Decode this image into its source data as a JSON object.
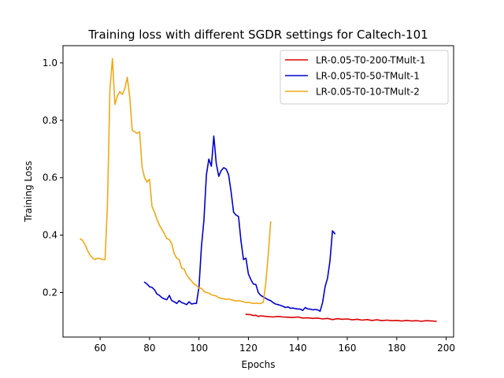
{
  "chart_data": {
    "type": "line",
    "title": "Training loss with different SGDR settings for Caltech-101",
    "xlabel": "Epochs",
    "ylabel": "Training Loss",
    "xlim": [
      45,
      203
    ],
    "ylim": [
      0.045,
      1.06
    ],
    "xticks": [
      60,
      80,
      100,
      120,
      140,
      160,
      180,
      200
    ],
    "yticks": [
      0.2,
      0.4,
      0.6,
      0.8,
      1.0
    ],
    "xtick_labels": [
      "60",
      "80",
      "100",
      "120",
      "140",
      "160",
      "180",
      "200"
    ],
    "ytick_labels": [
      "0.2",
      "0.4",
      "0.6",
      "0.8",
      "1.0"
    ],
    "grid": false,
    "legend_position": "upper right",
    "series": [
      {
        "name": "LR-0.05-T0-200-TMult-1",
        "color": "#dd0000",
        "x": [
          119,
          121,
          122,
          123,
          124,
          125,
          126,
          128,
          130,
          132,
          134,
          136,
          138,
          140,
          142,
          144,
          146,
          148,
          150,
          152,
          154,
          156,
          158,
          160,
          162,
          164,
          166,
          168,
          170,
          172,
          174,
          176,
          178,
          180,
          182,
          184,
          186,
          188,
          190,
          192,
          194,
          196
        ],
        "y": [
          0.124,
          0.123,
          0.12,
          0.121,
          0.117,
          0.119,
          0.118,
          0.116,
          0.115,
          0.117,
          0.115,
          0.114,
          0.113,
          0.115,
          0.111,
          0.112,
          0.11,
          0.111,
          0.108,
          0.11,
          0.106,
          0.109,
          0.107,
          0.108,
          0.105,
          0.107,
          0.104,
          0.106,
          0.103,
          0.105,
          0.102,
          0.104,
          0.102,
          0.103,
          0.101,
          0.103,
          0.101,
          0.102,
          0.1,
          0.102,
          0.101,
          0.1
        ]
      },
      {
        "name": "LR-0.05-T0-50-TMult-1",
        "color": "#0000cc",
        "x": [
          78,
          79,
          80,
          81,
          82,
          83,
          84,
          85,
          86,
          87,
          88,
          89,
          90,
          91,
          92,
          93,
          94,
          95,
          96,
          97,
          98,
          99,
          100,
          101,
          102,
          103,
          104,
          105,
          106,
          107,
          108,
          109,
          110,
          111,
          112,
          113,
          114,
          115,
          116,
          117,
          118,
          119,
          120,
          121,
          122,
          123,
          124,
          125,
          126,
          127,
          128,
          129,
          130,
          131,
          132,
          133,
          134,
          135,
          136,
          137,
          138,
          139,
          140,
          141,
          142,
          143,
          144,
          145,
          146,
          147,
          148,
          149,
          150,
          151,
          152,
          153,
          154,
          155
        ],
        "y": [
          0.236,
          0.23,
          0.22,
          0.218,
          0.21,
          0.195,
          0.19,
          0.182,
          0.178,
          0.175,
          0.19,
          0.172,
          0.168,
          0.162,
          0.172,
          0.165,
          0.162,
          0.158,
          0.168,
          0.16,
          0.162,
          0.162,
          0.22,
          0.36,
          0.45,
          0.61,
          0.665,
          0.64,
          0.745,
          0.65,
          0.605,
          0.625,
          0.635,
          0.63,
          0.61,
          0.55,
          0.48,
          0.47,
          0.465,
          0.38,
          0.315,
          0.32,
          0.265,
          0.245,
          0.23,
          0.228,
          0.2,
          0.19,
          0.185,
          0.18,
          0.175,
          0.172,
          0.165,
          0.16,
          0.158,
          0.155,
          0.152,
          0.148,
          0.15,
          0.145,
          0.146,
          0.144,
          0.143,
          0.142,
          0.138,
          0.148,
          0.143,
          0.142,
          0.14,
          0.141,
          0.14,
          0.135,
          0.165,
          0.22,
          0.25,
          0.31,
          0.415,
          0.405
        ]
      },
      {
        "name": "LR-0.05-T0-10-TMult-2",
        "color": "#f0a818",
        "x": [
          52,
          53,
          54,
          55,
          56,
          57,
          58,
          59,
          60,
          61,
          62,
          63,
          64,
          65,
          66,
          67,
          68,
          69,
          70,
          71,
          72,
          73,
          74,
          75,
          76,
          77,
          78,
          79,
          80,
          81,
          82,
          83,
          84,
          85,
          86,
          87,
          88,
          89,
          90,
          91,
          92,
          93,
          94,
          95,
          96,
          97,
          98,
          99,
          100,
          101,
          102,
          103,
          104,
          105,
          106,
          107,
          108,
          109,
          110,
          111,
          112,
          113,
          114,
          115,
          116,
          117,
          118,
          119,
          120,
          121,
          122,
          123,
          124,
          125,
          126,
          127,
          128,
          129
        ],
        "y": [
          0.387,
          0.381,
          0.365,
          0.345,
          0.33,
          0.32,
          0.315,
          0.32,
          0.318,
          0.315,
          0.315,
          0.51,
          0.91,
          1.015,
          0.855,
          0.885,
          0.9,
          0.89,
          0.91,
          0.95,
          0.88,
          0.765,
          0.76,
          0.755,
          0.76,
          0.635,
          0.6,
          0.585,
          0.595,
          0.5,
          0.48,
          0.455,
          0.435,
          0.42,
          0.405,
          0.388,
          0.385,
          0.37,
          0.335,
          0.32,
          0.315,
          0.285,
          0.282,
          0.262,
          0.25,
          0.24,
          0.23,
          0.225,
          0.215,
          0.215,
          0.205,
          0.2,
          0.198,
          0.192,
          0.19,
          0.188,
          0.182,
          0.18,
          0.178,
          0.176,
          0.178,
          0.175,
          0.173,
          0.17,
          0.172,
          0.17,
          0.168,
          0.165,
          0.166,
          0.164,
          0.162,
          0.163,
          0.162,
          0.162,
          0.166,
          0.23,
          0.33,
          0.447
        ]
      }
    ]
  }
}
